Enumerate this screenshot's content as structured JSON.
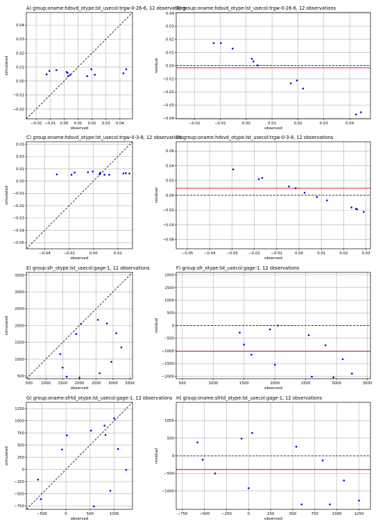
{
  "chart_data": [
    {
      "id": "A",
      "type": "scatter",
      "title": "A) group:oname:hdsvd_otype:lst_usecol:trgw-0-26-6, 12 observations",
      "xlabel": "observed",
      "ylabel": "simulated",
      "xlim": [
        -0.027,
        0.049
      ],
      "ylim": [
        -0.027,
        0.049
      ],
      "xticks": [
        -0.02,
        -0.01,
        0.0,
        0.01,
        0.02,
        0.03,
        0.04
      ],
      "yticks": [
        -0.02,
        -0.01,
        0.0,
        0.01,
        0.02,
        0.03,
        0.04
      ],
      "xtick_labels": [
        "−0.02",
        "−0.01",
        "0.00",
        "0.01",
        "0.02",
        "0.03",
        "0.04"
      ],
      "ytick_labels": [
        "−0.02",
        "−0.01",
        "0.00",
        "0.01",
        "0.02",
        "0.03",
        "0.04"
      ],
      "grid": true,
      "one_to_one_line": true,
      "points": {
        "x": [
          -0.0125,
          -0.0105,
          -0.0055,
          0.0018,
          0.0025,
          0.003,
          0.0045,
          0.0165,
          0.0195,
          0.022,
          0.0425,
          0.0445
        ],
        "y": [
          0.0048,
          0.0072,
          0.0078,
          0.0065,
          0.0058,
          0.0035,
          0.0045,
          0.0035,
          0.0085,
          0.0045,
          0.0055,
          0.0085
        ]
      }
    },
    {
      "id": "B",
      "type": "scatter",
      "title": "B) group:oname:hdsvd_otype:lst_usecol:trgw-0-26-6, 12 observations",
      "xlabel": "observed",
      "ylabel": "residual",
      "xlim": [
        -0.027,
        0.048
      ],
      "ylim": [
        -0.0405,
        0.0405
      ],
      "xticks": [
        -0.02,
        -0.01,
        0.0,
        0.01,
        0.02,
        0.03,
        0.04
      ],
      "yticks": [
        -0.04,
        -0.03,
        -0.02,
        -0.01,
        0.0,
        0.01,
        0.02,
        0.03,
        0.04
      ],
      "xtick_labels": [
        "−0.02",
        "−0.01",
        "0.00",
        "0.01",
        "0.02",
        "0.03",
        "0.04"
      ],
      "ytick_labels": [
        "−0.04",
        "−0.03",
        "−0.02",
        "−0.01",
        "0.00",
        "0.01",
        "0.02",
        "0.03",
        "0.04"
      ],
      "grid": true,
      "zero_line": true,
      "mean_residual": -0.0017,
      "points": {
        "x": [
          -0.0125,
          -0.0098,
          -0.0052,
          0.0022,
          0.0028,
          0.0043,
          0.0045,
          0.0172,
          0.0196,
          0.022,
          0.0424,
          0.0443
        ],
        "y": [
          0.0172,
          0.0172,
          0.013,
          0.0052,
          0.0032,
          0.0002,
          0.0002,
          -0.0135,
          -0.0113,
          -0.0175,
          -0.0372,
          -0.0355
        ]
      }
    },
    {
      "id": "C",
      "type": "scatter",
      "title": "C) group:oname:hdsvd_otype:lst_usecol:trgw-0-3-8, 12 observations",
      "xlabel": "observed",
      "ylabel": "simulated",
      "xlim": [
        -0.055,
        0.032
      ],
      "ylim": [
        -0.055,
        0.032
      ],
      "xticks": [
        -0.04,
        -0.02,
        0.0,
        0.02
      ],
      "yticks": [
        -0.05,
        -0.04,
        -0.03,
        -0.02,
        -0.01,
        0.0,
        0.01,
        0.02,
        0.03
      ],
      "xtick_labels": [
        "−0.04",
        "−0.02",
        "0.00",
        "0.02"
      ],
      "ytick_labels": [
        "−0.05",
        "−0.04",
        "−0.03",
        "−0.02",
        "−0.01",
        "0.00",
        "0.01",
        "0.02",
        "0.03"
      ],
      "grid": true,
      "one_to_one_line": true,
      "points": {
        "x": [
          -0.03,
          -0.018,
          -0.0155,
          -0.0045,
          -0.0005,
          0.005,
          0.009,
          0.013,
          0.0245,
          0.0265,
          0.0295,
          0.0055
        ],
        "y": [
          0.0055,
          0.0052,
          0.007,
          0.0072,
          0.0078,
          0.0055,
          0.0052,
          0.0052,
          0.0062,
          0.0065,
          0.0062,
          0.0068
        ]
      }
    },
    {
      "id": "D",
      "type": "scatter",
      "title": "D) group:oname:hdsvd_otype:lst_usecol:trgw-0-3-8, 12 observations",
      "xlabel": "observed",
      "ylabel": "residual",
      "xlim": [
        -0.055,
        0.032
      ],
      "ylim": [
        -0.0725,
        0.0725
      ],
      "xticks": [
        -0.05,
        -0.04,
        -0.03,
        -0.02,
        -0.01,
        0.0,
        0.01,
        0.02,
        0.03
      ],
      "yticks": [
        -0.06,
        -0.04,
        -0.02,
        0.0,
        0.02,
        0.04,
        0.06
      ],
      "xtick_labels": [
        "−0.05",
        "−0.04",
        "−0.03",
        "−0.02",
        "−0.01",
        "0.00",
        "0.01",
        "0.02",
        "0.03"
      ],
      "ytick_labels": [
        "−0.06",
        "−0.04",
        "−0.02",
        "0.00",
        "0.02",
        "0.04",
        "0.06"
      ],
      "grid": true,
      "zero_line": true,
      "mean_residual": 0.0095,
      "points": {
        "x": [
          -0.0295,
          -0.018,
          -0.0165,
          -0.0045,
          -0.0015,
          0.0025,
          0.008,
          0.0125,
          0.0235,
          0.0255,
          0.029,
          0.026
        ],
        "y": [
          0.035,
          0.022,
          0.0235,
          0.012,
          0.0095,
          0.0035,
          -0.0025,
          -0.007,
          -0.0165,
          -0.0185,
          -0.0225,
          -0.019
        ]
      }
    },
    {
      "id": "E",
      "type": "scatter",
      "title": "E) group:sfr_otype:lst_usecol:gage-1, 12 observations",
      "xlabel": "observed",
      "ylabel": "simulated",
      "xlim": [
        420,
        3580
      ],
      "ylim": [
        420,
        3580
      ],
      "xticks": [
        500,
        1000,
        1500,
        2000,
        2500,
        3000,
        3500
      ],
      "yticks": [
        500,
        1000,
        1500,
        2000,
        2500,
        3000,
        3500
      ],
      "xtick_labels": [
        "500",
        "1000",
        "1500",
        "2000",
        "2500",
        "3000",
        "3500"
      ],
      "ytick_labels": [
        "500",
        "1000",
        "1500",
        "2000",
        "2500",
        "3000",
        "3500"
      ],
      "grid": true,
      "one_to_one_line": true,
      "points": {
        "x": [
          1430,
          1500,
          1620,
          1900,
          2000,
          2050,
          2550,
          2600,
          2820,
          2950,
          3100,
          3250
        ],
        "y": [
          1150,
          750,
          480,
          1750,
          450,
          2050,
          2170,
          580,
          2060,
          920,
          1770,
          1350
        ]
      }
    },
    {
      "id": "F",
      "type": "scatter",
      "title": "F) group:sfr_otype:lst_usecol:gage-1, 12 observations",
      "xlabel": "observed",
      "ylabel": "residual",
      "xlim": [
        400,
        3550
      ],
      "ylim": [
        -2100,
        2100
      ],
      "xticks": [
        500,
        1000,
        1500,
        2000,
        2500,
        3000,
        3500
      ],
      "yticks": [
        -2000,
        -1500,
        -1000,
        -500,
        0,
        500,
        1000,
        1500,
        2000
      ],
      "xtick_labels": [
        "500",
        "1000",
        "1500",
        "2000",
        "2500",
        "3000",
        "3500"
      ],
      "ytick_labels": [
        "−2000",
        "−1500",
        "−1000",
        "−500",
        "0",
        "500",
        "1000",
        "1500",
        "2000"
      ],
      "grid": true,
      "zero_line": true,
      "mean_residual": -1020,
      "points": {
        "x": [
          1430,
          1500,
          1620,
          1920,
          2000,
          2050,
          2550,
          2600,
          2820,
          2950,
          3100,
          3250
        ],
        "y": [
          -280,
          -750,
          -1150,
          -150,
          -1550,
          0,
          -380,
          -2020,
          -780,
          -2050,
          -1330,
          -1900
        ]
      }
    },
    {
      "id": "G",
      "type": "scatter",
      "title": "G) group:oname:sfrtd_otype:lst_usecol:gage-1, 12 observations",
      "xlabel": "observed",
      "ylabel": "simulated",
      "xlim": [
        -820,
        1380
      ],
      "ylim": [
        -820,
        1380
      ],
      "xticks": [
        -500,
        0,
        500,
        1000
      ],
      "yticks": [
        -750,
        -500,
        -250,
        0,
        250,
        500,
        750,
        1000,
        1250
      ],
      "xtick_labels": [
        "−500",
        "0",
        "500",
        "1000"
      ],
      "ytick_labels": [
        "−750",
        "−500",
        "−250",
        "0",
        "250",
        "500",
        "750",
        "1000",
        "1250"
      ],
      "grid": true,
      "one_to_one_line": true,
      "points": {
        "x": [
          -580,
          -520,
          -80,
          20,
          520,
          580,
          820,
          920,
          1080,
          1250,
          800,
          1000
        ],
        "y": [
          -210,
          -610,
          410,
          700,
          800,
          -760,
          710,
          -440,
          420,
          -10,
          900,
          1050
        ]
      }
    },
    {
      "id": "H",
      "type": "scatter",
      "title": "H) group:oname:sfrtd_otype:lst_usecol:gage-1, 12 observations",
      "xlabel": "observed",
      "ylabel": "residual",
      "xlim": [
        -820,
        1380
      ],
      "ylim": [
        -1520,
        1520
      ],
      "xticks": [
        -750,
        -500,
        -250,
        0,
        250,
        500,
        750,
        1000,
        1250
      ],
      "yticks": [
        -1000,
        -500,
        0,
        500,
        1000
      ],
      "xtick_labels": [
        "−750",
        "−500",
        "−250",
        "0",
        "250",
        "500",
        "750",
        "1000",
        "1250"
      ],
      "ytick_labels": [
        "−1000",
        "−500",
        "0",
        "500",
        "1000"
      ],
      "grid": true,
      "zero_line": true,
      "mean_residual": -390,
      "points": {
        "x": [
          -580,
          -520,
          -380,
          -80,
          0,
          40,
          540,
          600,
          840,
          920,
          1080,
          1250
        ],
        "y": [
          380,
          -110,
          -500,
          490,
          -920,
          650,
          260,
          -1380,
          -130,
          -1380,
          -700,
          -1270
        ]
      }
    }
  ]
}
